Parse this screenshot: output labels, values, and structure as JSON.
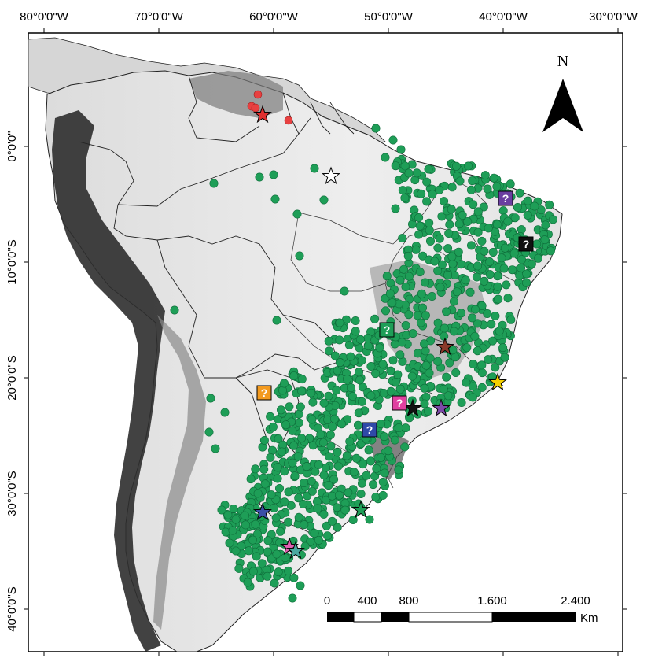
{
  "map": {
    "top_labels": [
      "80°0'0\"W",
      "70°0'0\"W",
      "60°0'0\"W",
      "50°0'0\"W",
      "40°0'0\"W",
      "30°0'0\"W"
    ],
    "left_labels": [
      "0°0'0\"",
      "10°0'0\"S",
      "20°0'0\"S",
      "30°0'0\"S",
      "40°0'0\"S"
    ],
    "north_arrow_label": "N",
    "scale_bar": {
      "labels": [
        "0",
        "400",
        "800",
        "1.600",
        "2.400"
      ],
      "unit": "Km"
    },
    "colors": {
      "occurrence_green": "#1e9e57",
      "occurrence_red": "#e84040",
      "land": "#e8e8e8",
      "relief_dark": "#3a3a3a",
      "ocean": "#ffffff"
    },
    "occurrence_points_green": "dense cluster over eastern and southern Brazil, scattered through Amazon basin",
    "occurrence_points_red": "few records in northern South America near Venezuela/Guyana border",
    "star_markers": [
      {
        "name": "star-red",
        "color": "#e03030"
      },
      {
        "name": "star-white",
        "color": "#ffffff"
      },
      {
        "name": "star-brown",
        "color": "#8b3a2a"
      },
      {
        "name": "star-yellow",
        "color": "#f5d000"
      },
      {
        "name": "star-black",
        "color": "#111111"
      },
      {
        "name": "star-purple",
        "color": "#7b4aa8"
      },
      {
        "name": "star-green",
        "color": "#1e9e57"
      },
      {
        "name": "star-blue",
        "color": "#3b4fa8"
      },
      {
        "name": "star-pink",
        "color": "#e060b0"
      },
      {
        "name": "star-teal",
        "color": "#4aa8a0"
      }
    ],
    "question_markers": [
      {
        "name": "question-purple",
        "color": "#6a3fa0",
        "text": "?"
      },
      {
        "name": "question-black",
        "color": "#111111",
        "text": "?"
      },
      {
        "name": "question-green",
        "color": "#1e9e57",
        "text": "?"
      },
      {
        "name": "question-orange",
        "color": "#f39a1e",
        "text": "?"
      },
      {
        "name": "question-pink",
        "color": "#e040a0",
        "text": "?"
      },
      {
        "name": "question-blue",
        "color": "#2f4aa8",
        "text": "?"
      }
    ]
  }
}
